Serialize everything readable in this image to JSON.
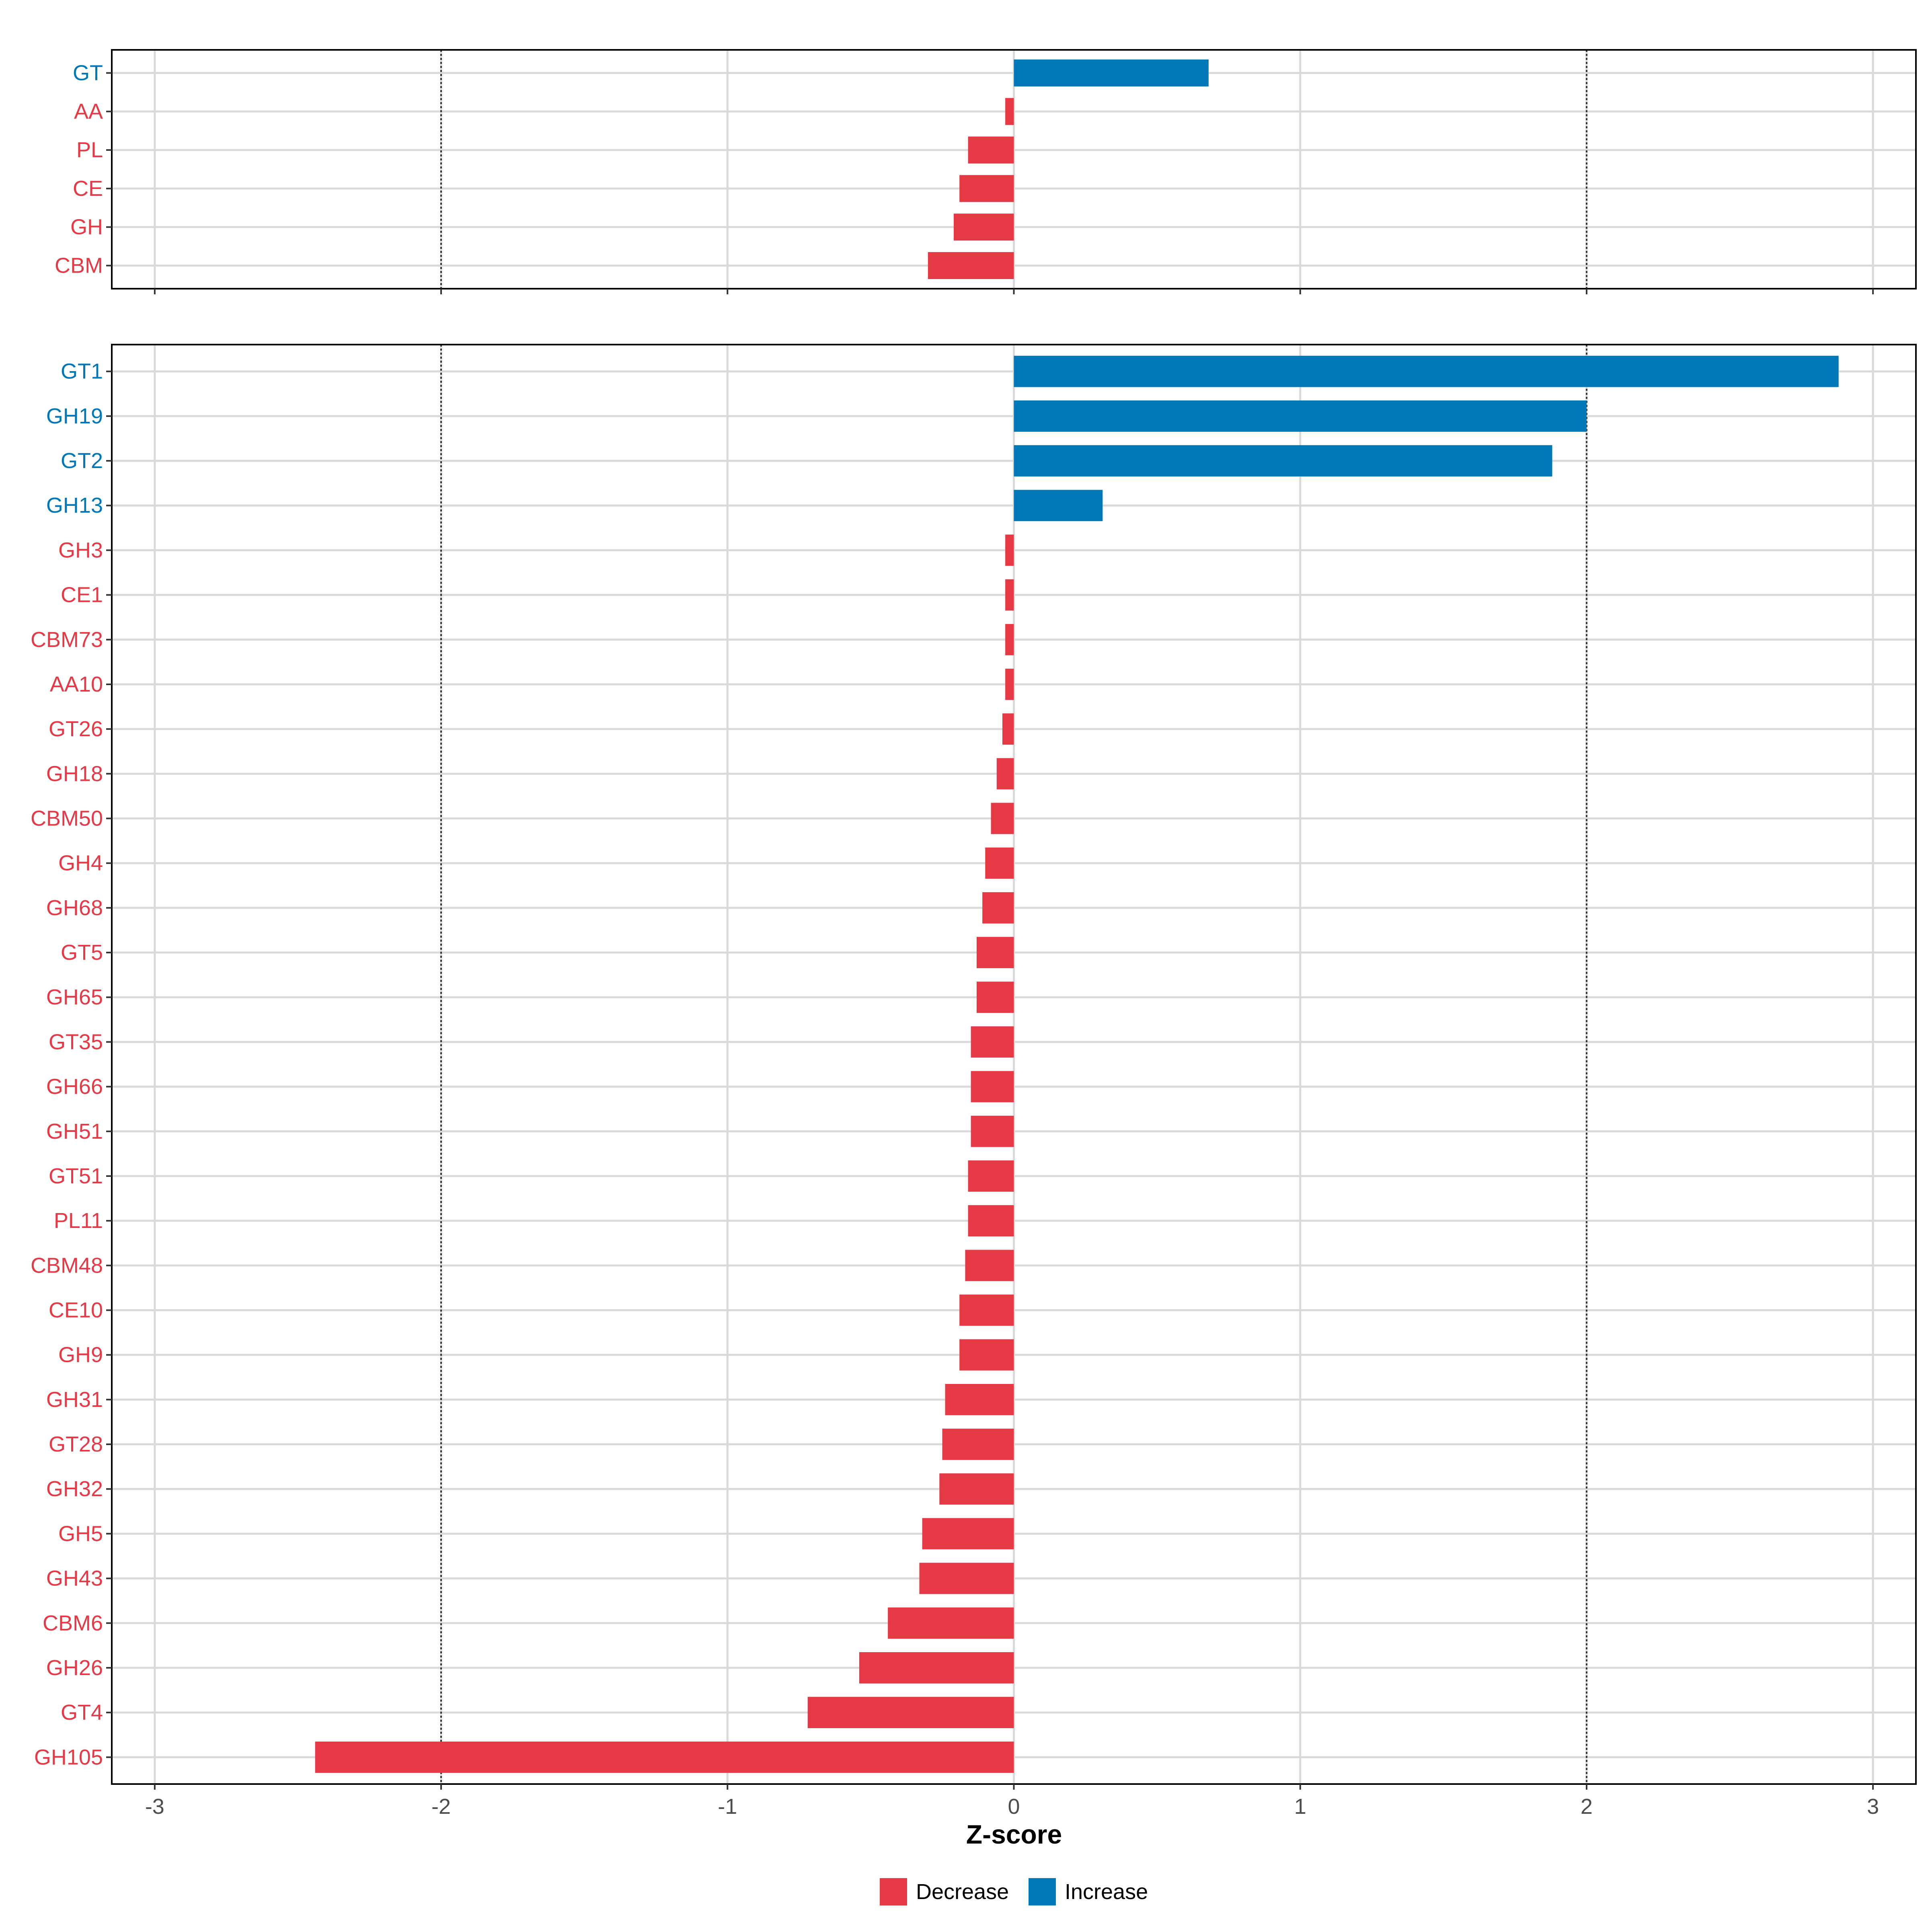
{
  "colors": {
    "decrease": "#E63946",
    "increase": "#0077B6",
    "grid": "#d9d9d9",
    "reference_line": "#333333",
    "axis_text": "#4d4d4d"
  },
  "chart_data": [
    {
      "type": "bar",
      "orientation": "horizontal",
      "panel": "top",
      "categories": [
        "GT",
        "AA",
        "PL",
        "CE",
        "GH",
        "CBM"
      ],
      "values": [
        0.68,
        -0.03,
        -0.16,
        -0.19,
        -0.21,
        -0.3
      ],
      "direction": [
        "Increase",
        "Decrease",
        "Decrease",
        "Decrease",
        "Decrease",
        "Decrease"
      ],
      "xlim": [
        -3.15,
        3.15
      ],
      "xticks": [
        -3,
        -2,
        -1,
        0,
        1,
        2,
        3
      ],
      "reference_lines": [
        -2,
        2
      ]
    },
    {
      "type": "bar",
      "orientation": "horizontal",
      "panel": "bottom",
      "categories": [
        "GT1",
        "GH19",
        "GT2",
        "GH13",
        "GH3",
        "CE1",
        "CBM73",
        "AA10",
        "GT26",
        "GH18",
        "CBM50",
        "GH4",
        "GH68",
        "GT5",
        "GH65",
        "GT35",
        "GH66",
        "GH51",
        "GT51",
        "PL11",
        "CBM48",
        "CE10",
        "GH9",
        "GH31",
        "GT28",
        "GH32",
        "GH5",
        "GH43",
        "CBM6",
        "GH26",
        "GT4",
        "GH105"
      ],
      "values": [
        2.88,
        2.0,
        1.88,
        0.31,
        -0.03,
        -0.03,
        -0.03,
        -0.03,
        -0.04,
        -0.06,
        -0.08,
        -0.1,
        -0.11,
        -0.13,
        -0.13,
        -0.15,
        -0.15,
        -0.15,
        -0.16,
        -0.16,
        -0.17,
        -0.19,
        -0.19,
        -0.24,
        -0.25,
        -0.26,
        -0.32,
        -0.33,
        -0.44,
        -0.54,
        -0.72,
        -2.44
      ],
      "direction": [
        "Increase",
        "Increase",
        "Increase",
        "Increase",
        "Decrease",
        "Decrease",
        "Decrease",
        "Decrease",
        "Decrease",
        "Decrease",
        "Decrease",
        "Decrease",
        "Decrease",
        "Decrease",
        "Decrease",
        "Decrease",
        "Decrease",
        "Decrease",
        "Decrease",
        "Decrease",
        "Decrease",
        "Decrease",
        "Decrease",
        "Decrease",
        "Decrease",
        "Decrease",
        "Decrease",
        "Decrease",
        "Decrease",
        "Decrease",
        "Decrease",
        "Decrease"
      ],
      "xlim": [
        -3.15,
        3.15
      ],
      "xticks": [
        -3,
        -2,
        -1,
        0,
        1,
        2,
        3
      ],
      "reference_lines": [
        -2,
        2
      ],
      "xlabel": "Z-score"
    }
  ],
  "legend": {
    "position": "bottom",
    "items": [
      {
        "label": "Decrease",
        "color_key": "decrease"
      },
      {
        "label": "Increase",
        "color_key": "increase"
      }
    ]
  }
}
